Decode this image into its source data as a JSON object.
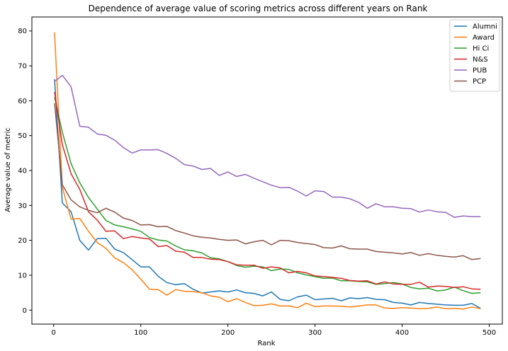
{
  "chart_data": {
    "type": "line",
    "title": "Dependence of average value of scoring metrics across different years on Rank",
    "xlabel": "Rank",
    "ylabel": "Average value of metric",
    "xlim": [
      -25,
      515
    ],
    "ylim": [
      -4,
      84
    ],
    "xticks": [
      0,
      100,
      200,
      300,
      400,
      500
    ],
    "yticks": [
      0,
      10,
      20,
      30,
      40,
      50,
      60,
      70,
      80
    ],
    "grid": false,
    "legend_position": "top-right",
    "x": [
      1,
      10,
      20,
      30,
      40,
      50,
      60,
      70,
      80,
      90,
      100,
      110,
      120,
      130,
      140,
      150,
      160,
      170,
      180,
      190,
      200,
      210,
      220,
      230,
      240,
      250,
      260,
      270,
      280,
      290,
      300,
      310,
      320,
      330,
      340,
      350,
      360,
      370,
      380,
      390,
      400,
      410,
      420,
      430,
      440,
      450,
      460,
      470,
      480,
      490
    ],
    "series": [
      {
        "name": "Alumni",
        "color": "#1f77b4",
        "values": [
          66.2,
          30.7,
          28.2,
          20.0,
          17.2,
          20.5,
          20.6,
          17.5,
          16.5,
          14.5,
          12.4,
          12.4,
          9.7,
          7.9,
          7.3,
          7.6,
          6.0,
          4.9,
          5.2,
          5.5,
          5.2,
          5.8,
          5.0,
          4.8,
          4.1,
          5.2,
          3.1,
          2.7,
          3.8,
          4.3,
          3.0,
          3.2,
          3.4,
          2.7,
          3.5,
          3.3,
          3.6,
          3.1,
          3.0,
          2.2,
          2.0,
          1.5,
          2.2,
          1.9,
          1.7,
          1.5,
          1.4,
          1.4,
          1.9,
          0.5
        ]
      },
      {
        "name": "Award",
        "color": "#ff7f0e",
        "values": [
          79.6,
          35.2,
          26.1,
          26.3,
          22.6,
          19.4,
          17.7,
          15.0,
          13.6,
          11.6,
          8.9,
          6.0,
          5.9,
          4.3,
          5.9,
          5.4,
          5.3,
          5.0,
          4.1,
          3.7,
          2.4,
          3.3,
          2.2,
          1.3,
          1.4,
          1.8,
          1.2,
          1.2,
          0.7,
          2.0,
          1.0,
          1.2,
          1.2,
          1.1,
          0.9,
          1.2,
          1.5,
          1.5,
          0.6,
          0.5,
          0.7,
          0.6,
          0.4,
          0.5,
          0.9,
          0.4,
          0.5,
          0.3,
          0.9,
          0.4
        ]
      },
      {
        "name": "Hi Ci",
        "color": "#2ca02c",
        "values": [
          61.0,
          51.0,
          42.0,
          36.5,
          32.3,
          29.0,
          25.7,
          24.4,
          23.9,
          23.3,
          22.6,
          20.8,
          20.1,
          19.8,
          18.4,
          17.3,
          17.0,
          16.4,
          15.0,
          14.7,
          13.9,
          12.8,
          12.3,
          12.6,
          12.4,
          11.3,
          11.8,
          11.7,
          10.7,
          10.1,
          9.6,
          9.1,
          9.2,
          8.4,
          8.4,
          8.2,
          8.1,
          7.4,
          7.6,
          7.9,
          7.5,
          6.5,
          6.1,
          6.3,
          5.5,
          5.8,
          6.6,
          5.6,
          4.8,
          5.0
        ]
      },
      {
        "name": "N&S",
        "color": "#d62728",
        "values": [
          62.5,
          47.4,
          39.1,
          34.6,
          28.2,
          25.8,
          22.6,
          22.7,
          20.5,
          21.1,
          20.7,
          20.4,
          18.2,
          18.5,
          16.9,
          16.6,
          15.1,
          15.1,
          14.6,
          14.5,
          13.9,
          13.0,
          12.9,
          12.9,
          12.0,
          12.4,
          12.1,
          10.7,
          11.1,
          10.7,
          9.8,
          9.6,
          9.4,
          9.1,
          8.5,
          8.3,
          8.4,
          7.5,
          8.1,
          7.5,
          7.4,
          7.4,
          8.0,
          6.6,
          6.9,
          6.8,
          6.5,
          6.7,
          6.1,
          6.0
        ]
      },
      {
        "name": "PUB",
        "color": "#9467bd",
        "values": [
          65.5,
          67.3,
          64.0,
          52.7,
          52.4,
          50.5,
          50.1,
          48.7,
          46.6,
          45.0,
          45.9,
          45.9,
          46.0,
          44.9,
          43.5,
          41.7,
          41.3,
          40.3,
          40.6,
          38.6,
          39.6,
          38.3,
          38.9,
          37.8,
          36.8,
          35.8,
          35.1,
          35.2,
          34.1,
          32.7,
          34.2,
          34.0,
          32.4,
          32.4,
          31.9,
          30.9,
          29.2,
          30.5,
          29.6,
          29.6,
          29.2,
          29.1,
          28.1,
          28.7,
          28.2,
          28.0,
          26.6,
          27.0,
          26.8,
          26.8
        ]
      },
      {
        "name": "PCP",
        "color": "#8c564b",
        "values": [
          59.3,
          35.9,
          31.6,
          29.6,
          28.6,
          27.9,
          29.2,
          28.1,
          26.4,
          25.7,
          24.4,
          24.5,
          23.9,
          24.0,
          22.8,
          22.1,
          21.3,
          20.9,
          20.7,
          20.3,
          20.0,
          20.1,
          19.0,
          19.6,
          20.0,
          18.7,
          20.0,
          19.9,
          19.4,
          19.1,
          18.8,
          17.9,
          17.8,
          18.4,
          17.6,
          17.5,
          17.5,
          16.8,
          16.6,
          16.4,
          16.1,
          16.5,
          15.7,
          16.2,
          15.7,
          15.4,
          15.2,
          15.6,
          14.5,
          14.8
        ]
      }
    ]
  }
}
